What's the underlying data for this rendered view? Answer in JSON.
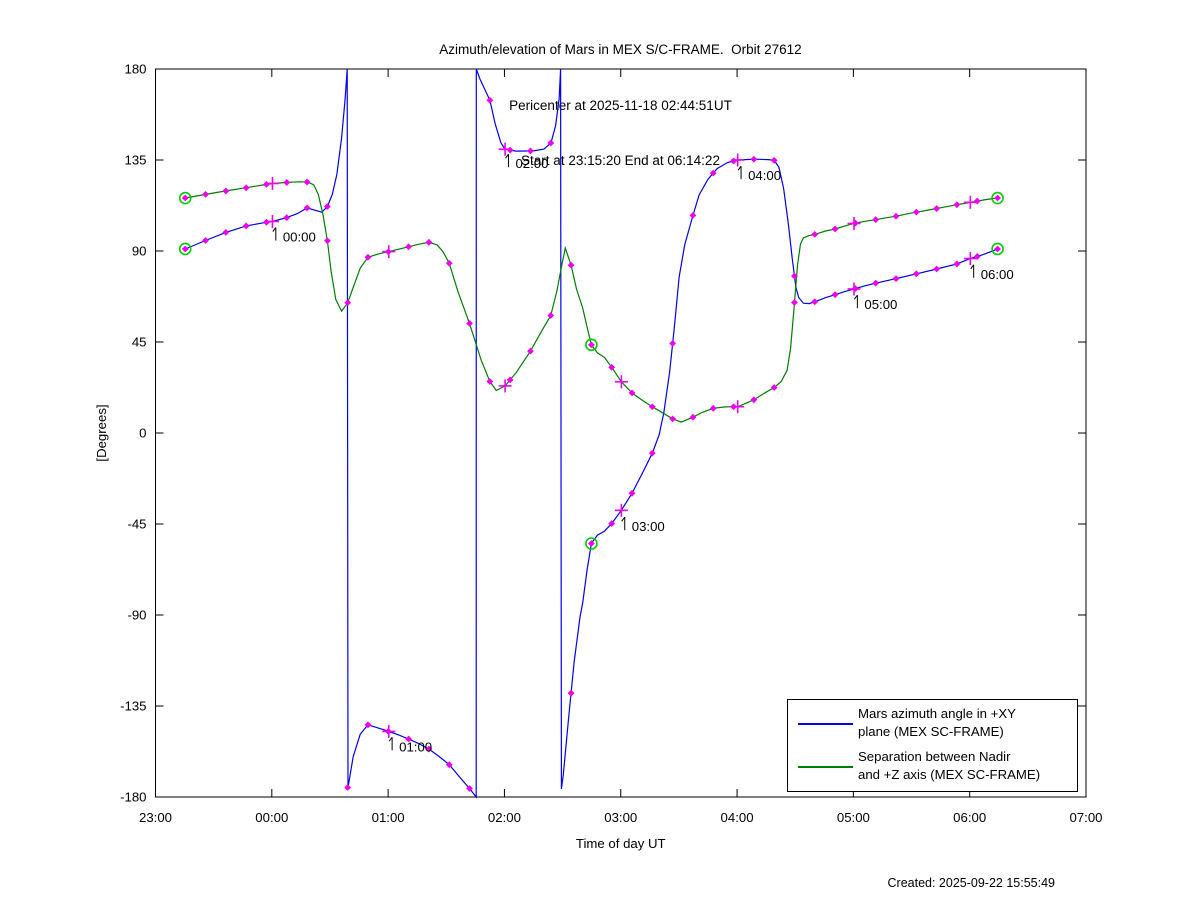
{
  "title": {
    "line1": "Azimuth/elevation of Mars in MEX S/C-FRAME.  Orbit 27612",
    "line2": "Pericenter at 2025-11-18 02:44:51UT",
    "line3": "Start at 23:15:20 End at 06:14:22"
  },
  "footer": {
    "created": "Created: 2025-09-22 15:55:49"
  },
  "legend": {
    "entries": [
      {
        "label_line1": "Mars azimuth angle in +XY",
        "label_line2": "plane (MEX SC-FRAME)",
        "color": "#0000ee"
      },
      {
        "label_line1": "Separation between Nadir",
        "label_line2": "and +Z axis (MEX SC-FRAME)",
        "color": "#007d00"
      }
    ]
  },
  "chart_data": {
    "type": "line",
    "xlabel": "Time of day UT",
    "ylabel": "[Degrees]",
    "x_tick_labels": [
      "23:00",
      "00:00",
      "01:00",
      "02:00",
      "03:00",
      "04:00",
      "05:00",
      "06:00",
      "07:00"
    ],
    "x_tick_hours_from_2300": [
      0,
      1,
      2,
      3,
      4,
      5,
      6,
      7,
      8
    ],
    "y_ticks": [
      180,
      135,
      90,
      45,
      0,
      -45,
      -90,
      -135,
      -180
    ],
    "y_range": [
      -180,
      180
    ],
    "x_range_hours_from_2300": [
      0,
      8
    ],
    "grid": false,
    "legend_position": "lower-right-inside",
    "colors": {
      "azimuth_line": "#0000ee",
      "separation_line": "#007d00",
      "sample_marker": "#ee00ee",
      "event_circle": "#00cc00",
      "axis": "#000000"
    },
    "marker_info": {
      "diamond_start_t": 0.2556,
      "diamond_step_t": 0.1746,
      "diamond_count": 41,
      "plus_times": [
        1.0056,
        2.0056,
        3.0056,
        4.0056,
        5.0056,
        6.0056,
        7.0056
      ]
    },
    "event_times": [
      {
        "t": 0.2556,
        "desc": "start 23:15:20"
      },
      {
        "t": 3.7476,
        "desc": "pericenter 02:44:51"
      },
      {
        "t": 7.2396,
        "desc": "end 06:14:22"
      }
    ],
    "annotations": [
      {
        "t": 1.0,
        "label": "00:00"
      },
      {
        "t": 2.0,
        "label": "01:00"
      },
      {
        "t": 3.0,
        "label": "02:00"
      },
      {
        "t": 4.0,
        "label": "03:00"
      },
      {
        "t": 5.0,
        "label": "04:00"
      },
      {
        "t": 6.0,
        "label": "05:00"
      },
      {
        "t": 7.0,
        "label": "06:00"
      }
    ],
    "series": [
      {
        "name": "Mars azimuth angle in +XY plane (MEX SC-FRAME)",
        "key": "azimuth",
        "points": [
          [
            0.256,
            91
          ],
          [
            0.43,
            95.2
          ],
          [
            0.605,
            99.2
          ],
          [
            0.78,
            102.4
          ],
          [
            0.95,
            104.2
          ],
          [
            1.006,
            104.6
          ],
          [
            1.129,
            106.5
          ],
          [
            1.22,
            108.5
          ],
          [
            1.303,
            111.3
          ],
          [
            1.37,
            110.2
          ],
          [
            1.43,
            109.2
          ],
          [
            1.478,
            112
          ],
          [
            1.52,
            118
          ],
          [
            1.56,
            128
          ],
          [
            1.6,
            146
          ],
          [
            1.63,
            165
          ],
          [
            1.648,
            180
          ],
          [
            1.655,
            -175.3
          ],
          [
            1.7,
            -160
          ],
          [
            1.76,
            -149
          ],
          [
            1.827,
            -144.3
          ],
          [
            1.92,
            -146
          ],
          [
            2.006,
            -147.6
          ],
          [
            2.09,
            -149.3
          ],
          [
            2.176,
            -151.3
          ],
          [
            2.26,
            -153.5
          ],
          [
            2.351,
            -156.3
          ],
          [
            2.44,
            -160
          ],
          [
            2.525,
            -164
          ],
          [
            2.62,
            -170.5
          ],
          [
            2.7,
            -175.8
          ],
          [
            2.757,
            -180
          ],
          [
            2.758,
            180
          ],
          [
            2.79,
            175
          ],
          [
            2.875,
            164.5
          ],
          [
            2.92,
            153
          ],
          [
            2.97,
            143.5
          ],
          [
            3.006,
            140.3
          ],
          [
            3.1,
            139.4
          ],
          [
            3.25,
            139.5
          ],
          [
            3.34,
            140.4
          ],
          [
            3.4,
            143.5
          ],
          [
            3.44,
            152
          ],
          [
            3.47,
            165
          ],
          [
            3.483,
            180
          ],
          [
            3.49,
            -176
          ],
          [
            3.506,
            -169
          ],
          [
            3.55,
            -142
          ],
          [
            3.6,
            -113
          ],
          [
            3.65,
            -91
          ],
          [
            3.673,
            -84
          ],
          [
            3.71,
            -68
          ],
          [
            3.748,
            -54.5
          ],
          [
            3.8,
            -50.5
          ],
          [
            3.86,
            -48.5
          ],
          [
            3.922,
            -44.8
          ],
          [
            4.006,
            -38.2
          ],
          [
            4.097,
            -29.8
          ],
          [
            4.19,
            -19.5
          ],
          [
            4.271,
            -10
          ],
          [
            4.33,
            -1
          ],
          [
            4.37,
            10
          ],
          [
            4.42,
            30
          ],
          [
            4.46,
            52
          ],
          [
            4.502,
            77
          ],
          [
            4.55,
            93
          ],
          [
            4.62,
            107.5
          ],
          [
            4.674,
            117.7
          ],
          [
            4.75,
            125.5
          ],
          [
            4.83,
            130.8
          ],
          [
            4.92,
            133.8
          ],
          [
            5.006,
            135
          ],
          [
            5.15,
            135.4
          ],
          [
            5.27,
            135.2
          ],
          [
            5.319,
            134.8
          ],
          [
            5.36,
            131.5
          ],
          [
            5.4,
            121
          ],
          [
            5.44,
            104
          ],
          [
            5.475,
            86
          ],
          [
            5.506,
            72
          ],
          [
            5.53,
            67
          ],
          [
            5.57,
            64.2
          ],
          [
            5.62,
            64
          ],
          [
            5.668,
            64.9
          ],
          [
            5.76,
            66.9
          ],
          [
            5.843,
            68.4
          ],
          [
            5.93,
            70
          ],
          [
            6.017,
            71.4
          ],
          [
            6.1,
            72.8
          ],
          [
            6.192,
            74.1
          ],
          [
            6.37,
            76.4
          ],
          [
            6.54,
            78.7
          ],
          [
            6.716,
            81.1
          ],
          [
            6.89,
            83.6
          ],
          [
            7.006,
            86.3
          ],
          [
            7.1,
            87.9
          ],
          [
            7.17,
            89.4
          ],
          [
            7.2396,
            91
          ]
        ]
      },
      {
        "name": "Separation between Nadir and +Z axis (MEX SC-FRAME)",
        "key": "separation",
        "points": [
          [
            0.256,
            116.2
          ],
          [
            0.43,
            118
          ],
          [
            0.605,
            119.7
          ],
          [
            0.78,
            121.3
          ],
          [
            0.95,
            122.9
          ],
          [
            1.006,
            123.4
          ],
          [
            1.129,
            123.9
          ],
          [
            1.24,
            124.2
          ],
          [
            1.303,
            124.1
          ],
          [
            1.36,
            122.8
          ],
          [
            1.4,
            118
          ],
          [
            1.44,
            108
          ],
          [
            1.478,
            95
          ],
          [
            1.51,
            80
          ],
          [
            1.55,
            66
          ],
          [
            1.6,
            60.3
          ],
          [
            1.6524,
            64.4
          ],
          [
            1.7,
            72
          ],
          [
            1.76,
            81.5
          ],
          [
            1.827,
            86.9
          ],
          [
            1.92,
            88.6
          ],
          [
            2.006,
            89.7
          ],
          [
            2.09,
            90.9
          ],
          [
            2.176,
            92.1
          ],
          [
            2.26,
            93.3
          ],
          [
            2.351,
            94.3
          ],
          [
            2.42,
            93
          ],
          [
            2.47,
            89.8
          ],
          [
            2.525,
            84
          ],
          [
            2.6,
            70
          ],
          [
            2.7,
            54.2
          ],
          [
            2.8,
            36
          ],
          [
            2.875,
            25.4
          ],
          [
            2.93,
            21
          ],
          [
            3.006,
            23.3
          ],
          [
            3.1,
            29.8
          ],
          [
            3.224,
            40.5
          ],
          [
            3.32,
            50.5
          ],
          [
            3.398,
            58
          ],
          [
            3.45,
            70
          ],
          [
            3.5,
            85
          ],
          [
            3.523,
            91.5
          ],
          [
            3.573,
            83
          ],
          [
            3.62,
            71
          ],
          [
            3.673,
            61.8
          ],
          [
            3.71,
            52.5
          ],
          [
            3.748,
            43.5
          ],
          [
            3.8,
            39.6
          ],
          [
            3.86,
            37.4
          ],
          [
            3.922,
            32.5
          ],
          [
            4.006,
            25.3
          ],
          [
            4.097,
            19.8
          ],
          [
            4.19,
            16
          ],
          [
            4.271,
            13
          ],
          [
            4.36,
            10
          ],
          [
            4.446,
            7
          ],
          [
            4.52,
            5.4
          ],
          [
            4.62,
            7.8
          ],
          [
            4.7,
            10.2
          ],
          [
            4.795,
            12.2
          ],
          [
            4.9,
            12.9
          ],
          [
            5.006,
            13
          ],
          [
            5.1,
            15.3
          ],
          [
            5.144,
            16.4
          ],
          [
            5.24,
            19.9
          ],
          [
            5.319,
            22.5
          ],
          [
            5.38,
            25.5
          ],
          [
            5.43,
            31
          ],
          [
            5.46,
            42
          ],
          [
            5.49,
            62
          ],
          [
            5.52,
            83
          ],
          [
            5.545,
            93.5
          ],
          [
            5.57,
            96.5
          ],
          [
            5.62,
            97.6
          ],
          [
            5.668,
            98.2
          ],
          [
            5.76,
            99.9
          ],
          [
            5.843,
            100.9
          ],
          [
            5.93,
            102.4
          ],
          [
            6.017,
            103.8
          ],
          [
            6.1,
            104.7
          ],
          [
            6.192,
            105.5
          ],
          [
            6.28,
            106.4
          ],
          [
            6.37,
            107.2
          ],
          [
            6.45,
            108.2
          ],
          [
            6.54,
            109.2
          ],
          [
            6.63,
            110.1
          ],
          [
            6.716,
            111
          ],
          [
            6.8,
            111.9
          ],
          [
            6.89,
            112.9
          ],
          [
            6.98,
            113.8
          ],
          [
            7.065,
            114.7
          ],
          [
            7.15,
            115.5
          ],
          [
            7.2396,
            116.2
          ]
        ]
      }
    ]
  }
}
